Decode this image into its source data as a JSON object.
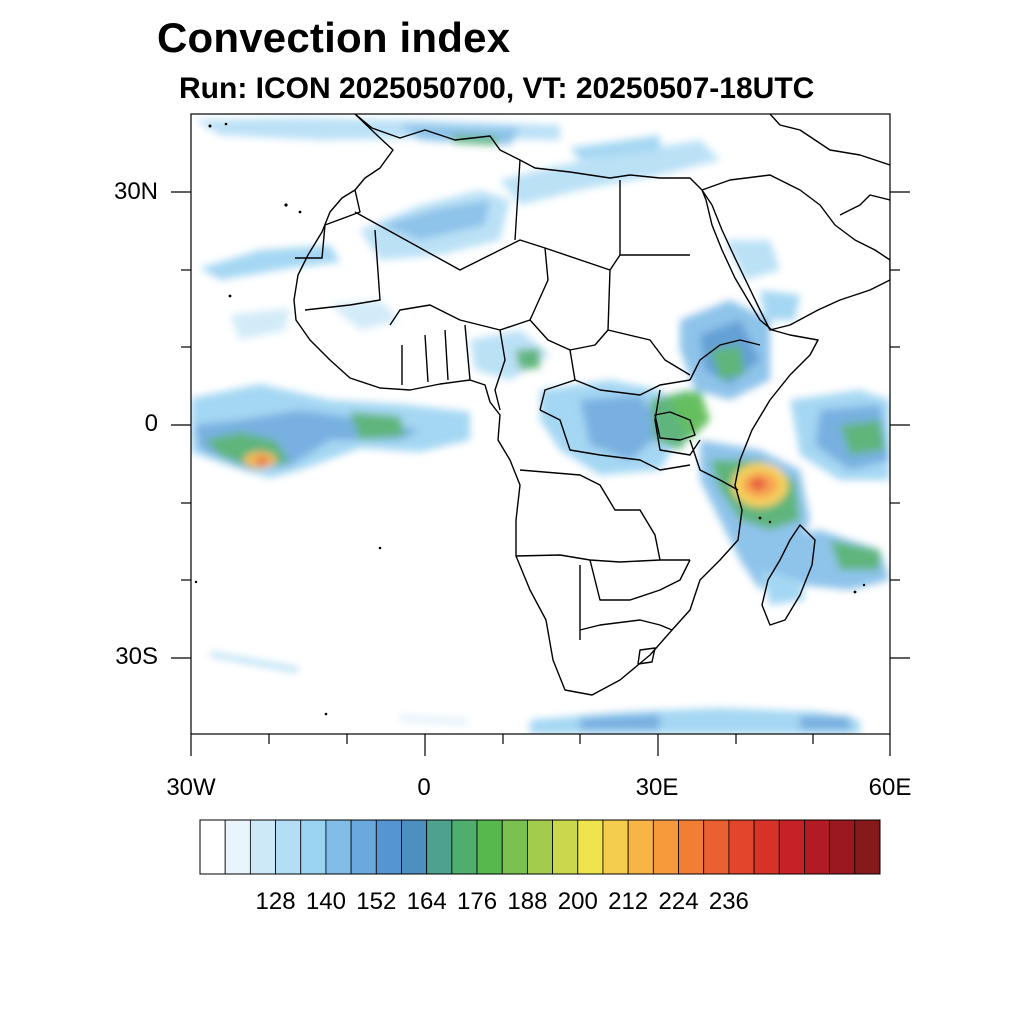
{
  "title": "Convection index",
  "subtitle": "Run: ICON 2025050700,  VT: 20250507-18UTC",
  "axes": {
    "y_labels": [
      "30N",
      "0",
      "30S"
    ],
    "y_values": [
      30,
      0,
      -30
    ],
    "x_labels": [
      "30W",
      "0",
      "30E",
      "60E"
    ],
    "x_values": [
      -30,
      0,
      30,
      60
    ],
    "lon_range": [
      -30,
      60
    ],
    "lat_range": [
      -40,
      40
    ]
  },
  "colorbar": {
    "labels": [
      "128",
      "140",
      "152",
      "164",
      "176",
      "188",
      "200",
      "212",
      "224",
      "236"
    ],
    "label_values": [
      128,
      140,
      152,
      164,
      176,
      188,
      200,
      212,
      224,
      236
    ],
    "colors": [
      "#ffffff",
      "#e9f5fd",
      "#cde9f8",
      "#b4def5",
      "#9bd3f2",
      "#82bde8",
      "#6aa8de",
      "#5596d2",
      "#4d8fbf",
      "#4ea08f",
      "#4fae6e",
      "#55b94e",
      "#7bc14f",
      "#a3cb4e",
      "#cad84b",
      "#efe34e",
      "#f5cd4e",
      "#f7b545",
      "#f79a3c",
      "#f27e35",
      "#ea6030",
      "#e2442c",
      "#d73128",
      "#c62126",
      "#b21a24",
      "#9c1820",
      "#861a1b"
    ]
  },
  "convection_colors": {
    "light": "#b4def5",
    "medium": "#6aa8de",
    "strong": "#4fae6e",
    "very_strong": "#efe34e",
    "extreme": "#e2442c"
  }
}
